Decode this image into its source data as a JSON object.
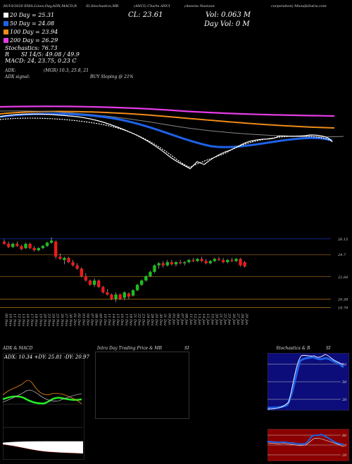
{
  "header": {
    "left": "30/10/2020 EMA:Lines:Day,ADX,MACD,R",
    "mid": "SI,Stochastics,MR",
    "stock": "(ANCI) Charts ANCI",
    "company_a": "(Aveeno Nasioon",
    "company_b": "corporation) MunafaSutra.com"
  },
  "stats": {
    "cl": "CL: 23.61",
    "vol": "Vol: 0.063 M",
    "dayvol": "Day Vol: 0   M",
    "ma20": "20  Day = 25.31",
    "ma50": "50  Day = 24.08",
    "ma100": "100  Day = 23.94",
    "ma200": "200  Day = 26.29",
    "stoch": "Stochastics: 76.73",
    "rsi": "SI 14/5: 49.08  / 49.9",
    "rsi_prefix": "R",
    "macd": "MACD: 24, 23.75,  0.23 C",
    "adx_label": "ADX:",
    "adx_vals": "(MGR) 10.3,  25.8,  21",
    "adx_signal": "ADX  signal:",
    "buy": "BUY Sloping @ 21%"
  },
  "colors": {
    "ma20": "#ffffff",
    "ma50": "#1e62e8",
    "ma100": "#f08c1a",
    "ma200": "#e63ce6",
    "up": "#1dbd1d",
    "down": "#e81c1c"
  },
  "candle_price_ticks": [
    "26.15",
    "24.7",
    "22.64",
    "20.58",
    "19.79"
  ],
  "x_dates": [
    "09 Nov",
    "10 Nov",
    "11 Nov",
    "12 Nov",
    "13 Nov",
    "16 Nov",
    "17 Nov",
    "18 Nov",
    "19 Nov",
    "20 Nov",
    "23 Nov",
    "24 Nov",
    "25 Nov",
    "26 Nov",
    "27 Nov",
    "30 Nov",
    "01 Dec",
    "02 Dec",
    "03 Dec",
    "04 Dec",
    "07 Dec",
    "08 Dec",
    "09 Dec",
    "10 Dec",
    "11 Dec",
    "14 Dec",
    "15 Dec",
    "16 Dec",
    "17 Dec",
    "18 Dec",
    "21 Dec",
    "22 Dec",
    "23 Dec",
    "24 Dec",
    "28 Dec",
    "29 Dec",
    "30 Dec",
    "31 Dec",
    "04 Jan",
    "05 Jan",
    "06 Jan",
    "07 Jan",
    "08 Jan",
    "11 Jan",
    "12 Jan",
    "13 Jan",
    "14 Jan",
    "15 Jan",
    "19 Jan",
    "20 Jan",
    "21 Jan",
    "22 Jan",
    "25 Jan",
    "26 Jan",
    "27 Jan",
    "28 Jan",
    "29 Jan"
  ],
  "panels": {
    "adx_title": "ADX  & MACD",
    "adx_values": "ADX: 10.34  +DY: 25.81  -DY: 20.97",
    "intraday_title": "Intra  Day Trading Price  & MR",
    "intraday_si": "SI",
    "stoch_title": "Stochastics & R",
    "stoch_si": "SI",
    "stoch_ticks": [
      "80",
      "50",
      "20"
    ],
    "rsi_ticks": [
      "80",
      "50",
      "20"
    ]
  },
  "chart_data": {
    "type": "candlestick",
    "ylim": [
      19.5,
      26.4
    ],
    "candles": [
      {
        "o": 25.9,
        "h": 26.1,
        "l": 25.6,
        "c": 25.7
      },
      {
        "o": 25.7,
        "h": 25.9,
        "l": 25.3,
        "c": 25.4
      },
      {
        "o": 25.4,
        "h": 25.8,
        "l": 25.3,
        "c": 25.7
      },
      {
        "o": 25.7,
        "h": 25.9,
        "l": 25.4,
        "c": 25.5
      },
      {
        "o": 25.5,
        "h": 25.6,
        "l": 25.1,
        "c": 25.2
      },
      {
        "o": 25.3,
        "h": 25.8,
        "l": 25.2,
        "c": 25.7
      },
      {
        "o": 25.7,
        "h": 25.8,
        "l": 25.2,
        "c": 25.3
      },
      {
        "o": 25.3,
        "h": 25.5,
        "l": 25.0,
        "c": 25.1
      },
      {
        "o": 25.1,
        "h": 25.4,
        "l": 25.0,
        "c": 25.3
      },
      {
        "o": 25.3,
        "h": 25.6,
        "l": 25.2,
        "c": 25.5
      },
      {
        "o": 25.5,
        "h": 25.9,
        "l": 25.4,
        "c": 25.8
      },
      {
        "o": 25.8,
        "h": 26.3,
        "l": 25.7,
        "c": 26.0
      },
      {
        "o": 25.9,
        "h": 26.0,
        "l": 24.3,
        "c": 24.5
      },
      {
        "o": 24.5,
        "h": 24.8,
        "l": 24.2,
        "c": 24.3
      },
      {
        "o": 24.2,
        "h": 24.5,
        "l": 23.8,
        "c": 24.4
      },
      {
        "o": 24.4,
        "h": 24.5,
        "l": 23.9,
        "c": 24.0
      },
      {
        "o": 24.0,
        "h": 24.2,
        "l": 23.6,
        "c": 23.7
      },
      {
        "o": 23.7,
        "h": 23.9,
        "l": 23.3,
        "c": 23.4
      },
      {
        "o": 23.4,
        "h": 23.5,
        "l": 22.6,
        "c": 22.7
      },
      {
        "o": 22.7,
        "h": 23.0,
        "l": 22.2,
        "c": 22.3
      },
      {
        "o": 22.3,
        "h": 22.4,
        "l": 21.8,
        "c": 21.9
      },
      {
        "o": 21.9,
        "h": 22.5,
        "l": 21.7,
        "c": 22.3
      },
      {
        "o": 22.3,
        "h": 22.4,
        "l": 21.6,
        "c": 21.7
      },
      {
        "o": 21.7,
        "h": 21.8,
        "l": 21.1,
        "c": 21.2
      },
      {
        "o": 21.2,
        "h": 21.5,
        "l": 20.9,
        "c": 21.0
      },
      {
        "o": 21.0,
        "h": 21.1,
        "l": 20.5,
        "c": 20.6
      },
      {
        "o": 20.6,
        "h": 21.2,
        "l": 20.3,
        "c": 21.0
      },
      {
        "o": 21.0,
        "h": 21.1,
        "l": 20.5,
        "c": 20.6
      },
      {
        "o": 20.7,
        "h": 21.3,
        "l": 20.5,
        "c": 21.2
      },
      {
        "o": 21.1,
        "h": 21.2,
        "l": 20.6,
        "c": 20.8
      },
      {
        "o": 20.9,
        "h": 21.5,
        "l": 20.8,
        "c": 21.4
      },
      {
        "o": 21.4,
        "h": 22.0,
        "l": 21.3,
        "c": 21.9
      },
      {
        "o": 21.9,
        "h": 22.4,
        "l": 21.8,
        "c": 22.3
      },
      {
        "o": 22.3,
        "h": 22.8,
        "l": 22.2,
        "c": 22.7
      },
      {
        "o": 22.7,
        "h": 23.2,
        "l": 22.6,
        "c": 23.1
      },
      {
        "o": 23.1,
        "h": 23.8,
        "l": 23.0,
        "c": 23.7
      },
      {
        "o": 23.7,
        "h": 24.0,
        "l": 23.4,
        "c": 23.9
      },
      {
        "o": 23.9,
        "h": 24.1,
        "l": 23.5,
        "c": 23.7
      },
      {
        "o": 23.7,
        "h": 24.2,
        "l": 23.6,
        "c": 24.0
      },
      {
        "o": 24.0,
        "h": 24.2,
        "l": 23.7,
        "c": 23.8
      },
      {
        "o": 23.8,
        "h": 24.1,
        "l": 23.6,
        "c": 24.0
      },
      {
        "o": 24.0,
        "h": 24.2,
        "l": 23.8,
        "c": 23.9
      },
      {
        "o": 23.9,
        "h": 24.1,
        "l": 23.7,
        "c": 24.0
      },
      {
        "o": 24.0,
        "h": 24.3,
        "l": 23.9,
        "c": 24.2
      },
      {
        "o": 24.2,
        "h": 24.4,
        "l": 24.0,
        "c": 24.1
      },
      {
        "o": 24.1,
        "h": 24.4,
        "l": 24.0,
        "c": 24.3
      },
      {
        "o": 24.3,
        "h": 24.5,
        "l": 24.0,
        "c": 24.1
      },
      {
        "o": 24.1,
        "h": 24.3,
        "l": 23.8,
        "c": 23.9
      },
      {
        "o": 23.9,
        "h": 24.2,
        "l": 23.8,
        "c": 24.1
      },
      {
        "o": 24.1,
        "h": 24.4,
        "l": 24.0,
        "c": 24.3
      },
      {
        "o": 24.3,
        "h": 24.5,
        "l": 24.1,
        "c": 24.2
      },
      {
        "o": 24.2,
        "h": 24.4,
        "l": 23.9,
        "c": 24.0
      },
      {
        "o": 24.0,
        "h": 24.3,
        "l": 23.9,
        "c": 24.2
      },
      {
        "o": 24.2,
        "h": 24.4,
        "l": 24.0,
        "c": 24.1
      },
      {
        "o": 24.1,
        "h": 24.4,
        "l": 24.0,
        "c": 24.3
      },
      {
        "o": 24.3,
        "h": 24.4,
        "l": 23.6,
        "c": 23.7
      },
      {
        "o": 24.0,
        "h": 24.1,
        "l": 23.5,
        "c": 23.6
      }
    ]
  }
}
